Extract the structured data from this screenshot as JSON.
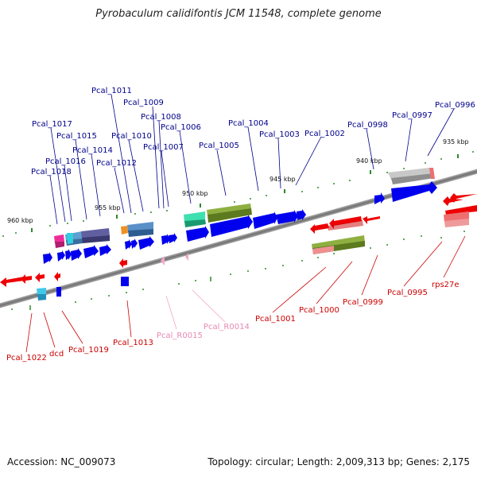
{
  "header": {
    "title": "Pyrobaculum calidifontis JCM 11548, complete genome"
  },
  "footer": {
    "accession": "Accession: NC_009073",
    "topology": "Topology: circular; Length: 2,009,313 bp; Genes: 2,175"
  },
  "scale_labels": [
    "935 kbp",
    "940 kbp",
    "945 kbp",
    "950 kbp",
    "955 kbp",
    "960 kbp"
  ],
  "colors": {
    "forward_gene": "#0000ee",
    "reverse_gene": "#ee0000",
    "rna_gene": "#f4a6c8",
    "forward_label": "#00008b",
    "reverse_label": "#cc0000",
    "rna_label": "#e889b3",
    "tick": "#2a8a2a",
    "backbone": "#8a8a8a"
  },
  "forward_labels": [
    "Pcal_0996",
    "Pcal_0997",
    "Pcal_0998",
    "Pcal_1002",
    "Pcal_1003",
    "Pcal_1004",
    "Pcal_1005",
    "Pcal_1006",
    "Pcal_1007",
    "Pcal_1008",
    "Pcal_1009",
    "Pcal_1010",
    "Pcal_1011",
    "Pcal_1012",
    "Pcal_1014",
    "Pcal_1015",
    "Pcal_1016",
    "Pcal_1017",
    "Pcal_1018"
  ],
  "reverse_labels": [
    "rps27e",
    "Pcal_0995",
    "Pcal_0999",
    "Pcal_1000",
    "Pcal_1001",
    "Pcal_1013",
    "Pcal_1019",
    "dcd",
    "Pcal_1022"
  ],
  "rna_labels": [
    "Pcal_R0014",
    "Pcal_R0015"
  ]
}
